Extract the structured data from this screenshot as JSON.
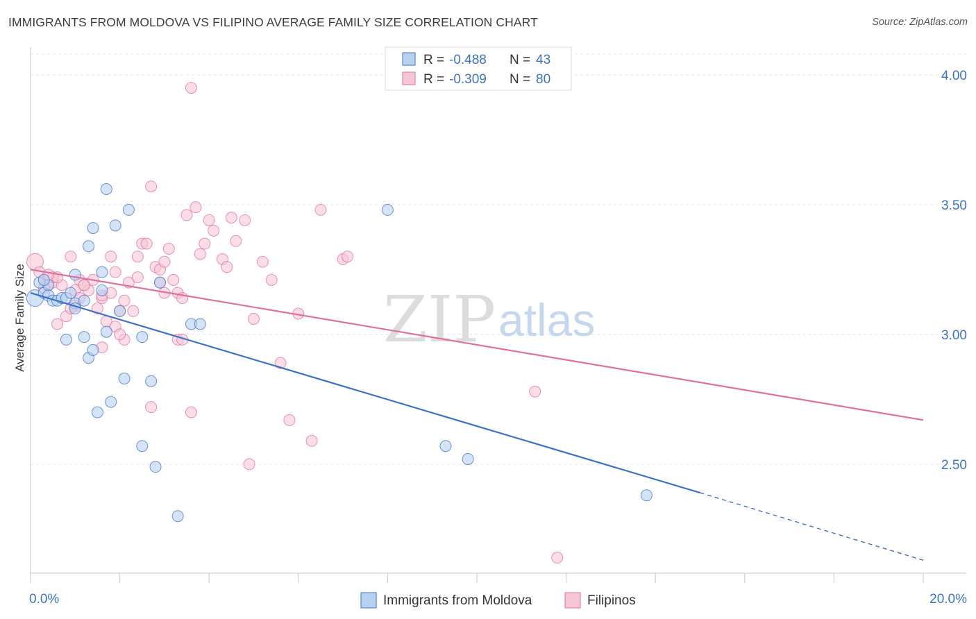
{
  "title": "IMMIGRANTS FROM MOLDOVA VS FILIPINO AVERAGE FAMILY SIZE CORRELATION CHART",
  "source": "Source: ZipAtlas.com",
  "watermark": {
    "zip": "ZIP",
    "atlas": "atlas"
  },
  "colors": {
    "blue": "#3b72c8",
    "blue_fill": "#b9d1f1",
    "pink": "#e07099",
    "pink_fill": "#f7c6d6",
    "grid": "#e0e0e0"
  },
  "legend": {
    "rows": [
      {
        "r_label": "R =",
        "r_value": "-0.488",
        "n_label": "N =",
        "n_value": "43"
      },
      {
        "r_label": "R =",
        "r_value": "-0.309",
        "n_label": "N =",
        "n_value": "80"
      }
    ]
  },
  "chart_data": {
    "type": "scatter",
    "ylabel": "Average Family Size",
    "xlim": [
      0.0,
      20.0
    ],
    "ylim": [
      2.08,
      4.08
    ],
    "x_tick_labels": [
      "0.0%",
      "20.0%"
    ],
    "y_ticks": [
      2.5,
      3.0,
      3.5,
      4.0
    ],
    "y_tick_labels": [
      "2.50",
      "3.00",
      "3.50",
      "4.00"
    ],
    "grid": "horizontal dashed",
    "legend_position": "top-center",
    "series": [
      {
        "name": "Immigrants from Moldova",
        "color": "#3b72c8",
        "trend": {
          "x0": 0.0,
          "y0": 3.16,
          "x1": 15.0,
          "y1": 2.39,
          "dashed_to_x": 20.0,
          "dashed_to_y": 2.13
        },
        "points": [
          [
            0.1,
            3.14
          ],
          [
            0.3,
            3.16
          ],
          [
            0.4,
            3.19
          ],
          [
            0.4,
            3.15
          ],
          [
            0.5,
            3.13
          ],
          [
            0.6,
            3.13
          ],
          [
            0.7,
            3.14
          ],
          [
            0.8,
            3.14
          ],
          [
            0.8,
            2.98
          ],
          [
            0.9,
            3.16
          ],
          [
            1.0,
            3.12
          ],
          [
            1.0,
            3.1
          ],
          [
            1.0,
            3.23
          ],
          [
            1.2,
            2.99
          ],
          [
            1.2,
            3.13
          ],
          [
            1.3,
            2.91
          ],
          [
            1.3,
            3.34
          ],
          [
            1.4,
            2.94
          ],
          [
            1.4,
            3.41
          ],
          [
            1.5,
            2.7
          ],
          [
            1.6,
            3.24
          ],
          [
            1.6,
            3.17
          ],
          [
            1.7,
            3.01
          ],
          [
            1.7,
            3.56
          ],
          [
            1.8,
            2.74
          ],
          [
            1.9,
            3.42
          ],
          [
            2.0,
            3.09
          ],
          [
            2.1,
            2.83
          ],
          [
            2.2,
            3.48
          ],
          [
            2.5,
            2.99
          ],
          [
            2.5,
            2.57
          ],
          [
            2.7,
            2.82
          ],
          [
            2.8,
            2.49
          ],
          [
            2.9,
            3.2
          ],
          [
            3.3,
            2.3
          ],
          [
            3.6,
            3.04
          ],
          [
            3.8,
            3.04
          ],
          [
            8.0,
            3.48
          ],
          [
            9.3,
            2.57
          ],
          [
            9.8,
            2.52
          ],
          [
            13.8,
            2.38
          ],
          [
            0.2,
            3.2
          ],
          [
            0.3,
            3.21
          ]
        ]
      },
      {
        "name": "Filipinos",
        "color": "#e07099",
        "trend": {
          "x0": 0.0,
          "y0": 3.25,
          "x1": 20.0,
          "y1": 2.67
        },
        "points": [
          [
            0.1,
            3.28
          ],
          [
            0.2,
            3.24
          ],
          [
            0.3,
            3.21
          ],
          [
            0.4,
            3.19
          ],
          [
            0.5,
            3.2
          ],
          [
            0.5,
            3.22
          ],
          [
            0.6,
            3.04
          ],
          [
            0.7,
            3.19
          ],
          [
            0.8,
            3.07
          ],
          [
            0.9,
            3.3
          ],
          [
            1.0,
            3.17
          ],
          [
            1.0,
            3.11
          ],
          [
            1.1,
            3.21
          ],
          [
            1.2,
            3.19
          ],
          [
            1.3,
            3.17
          ],
          [
            1.4,
            3.21
          ],
          [
            1.5,
            3.1
          ],
          [
            1.6,
            3.14
          ],
          [
            1.6,
            3.15
          ],
          [
            1.7,
            3.05
          ],
          [
            1.8,
            3.3
          ],
          [
            1.8,
            3.16
          ],
          [
            1.9,
            3.24
          ],
          [
            2.0,
            3.09
          ],
          [
            2.1,
            3.13
          ],
          [
            2.1,
            2.98
          ],
          [
            2.2,
            3.2
          ],
          [
            2.3,
            3.09
          ],
          [
            2.4,
            3.22
          ],
          [
            2.4,
            3.3
          ],
          [
            2.5,
            3.35
          ],
          [
            2.6,
            3.35
          ],
          [
            2.7,
            3.57
          ],
          [
            2.7,
            2.72
          ],
          [
            2.8,
            3.26
          ],
          [
            2.9,
            3.25
          ],
          [
            3.0,
            3.16
          ],
          [
            3.0,
            3.28
          ],
          [
            3.1,
            3.33
          ],
          [
            3.2,
            3.21
          ],
          [
            3.3,
            3.16
          ],
          [
            3.3,
            2.98
          ],
          [
            3.4,
            2.98
          ],
          [
            3.5,
            3.46
          ],
          [
            3.6,
            2.7
          ],
          [
            3.6,
            3.95
          ],
          [
            3.7,
            3.49
          ],
          [
            3.8,
            3.31
          ],
          [
            3.9,
            3.35
          ],
          [
            4.0,
            3.44
          ],
          [
            4.1,
            3.4
          ],
          [
            4.3,
            3.29
          ],
          [
            4.4,
            3.26
          ],
          [
            4.5,
            3.45
          ],
          [
            4.6,
            3.36
          ],
          [
            4.8,
            3.44
          ],
          [
            4.9,
            2.5
          ],
          [
            5.0,
            3.06
          ],
          [
            5.2,
            3.28
          ],
          [
            5.4,
            3.21
          ],
          [
            5.6,
            2.89
          ],
          [
            5.8,
            2.67
          ],
          [
            6.0,
            3.08
          ],
          [
            6.3,
            2.59
          ],
          [
            6.5,
            3.48
          ],
          [
            7.0,
            3.29
          ],
          [
            7.1,
            3.3
          ],
          [
            11.3,
            2.78
          ],
          [
            11.8,
            2.14
          ],
          [
            0.3,
            3.18
          ],
          [
            0.6,
            3.22
          ],
          [
            1.1,
            3.14
          ],
          [
            1.9,
            3.03
          ],
          [
            2.0,
            3.0
          ],
          [
            2.9,
            3.2
          ],
          [
            3.4,
            3.14
          ],
          [
            1.6,
            2.95
          ],
          [
            1.2,
            3.19
          ],
          [
            0.9,
            3.1
          ],
          [
            0.4,
            3.23
          ]
        ]
      }
    ]
  },
  "bottom_legend": [
    "Immigrants from Moldova",
    "Filipinos"
  ]
}
